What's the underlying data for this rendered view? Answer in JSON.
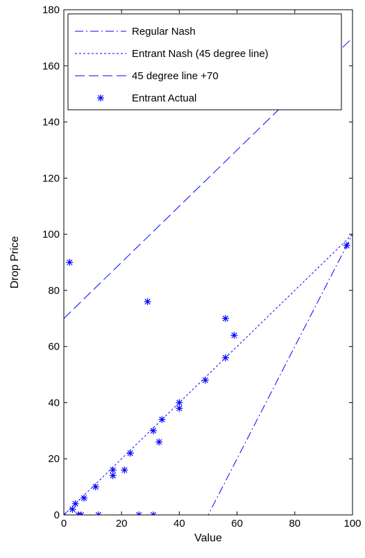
{
  "chart_data": {
    "type": "line",
    "title": "",
    "xlabel": "Value",
    "ylabel": "Drop Price",
    "xlim": [
      0,
      100
    ],
    "ylim": [
      0,
      180
    ],
    "x_ticks": [
      0,
      20,
      40,
      60,
      80,
      100
    ],
    "y_ticks": [
      0,
      20,
      40,
      60,
      80,
      100,
      120,
      140,
      160,
      180
    ],
    "legend_position": "top",
    "grid": false,
    "color": "#0000ff",
    "series": [
      {
        "name": "Regular Nash",
        "type": "line",
        "style": "dashdot",
        "x": [
          0,
          50,
          100
        ],
        "y": [
          0,
          0,
          100
        ]
      },
      {
        "name": "Entrant Nash (45 degree line)",
        "type": "line",
        "style": "dotted",
        "x": [
          0,
          100
        ],
        "y": [
          0,
          100
        ]
      },
      {
        "name": "45 degree line +70",
        "type": "line",
        "style": "dashed",
        "x": [
          0,
          100
        ],
        "y": [
          70,
          170
        ]
      },
      {
        "name": "Entrant Actual",
        "type": "scatter",
        "marker": "*",
        "points": [
          [
            2,
            90
          ],
          [
            29,
            76
          ],
          [
            56,
            70
          ],
          [
            59,
            64
          ],
          [
            56,
            56
          ],
          [
            49,
            48
          ],
          [
            40,
            40
          ],
          [
            40,
            38
          ],
          [
            34,
            34
          ],
          [
            31,
            30
          ],
          [
            33,
            26
          ],
          [
            23,
            22
          ],
          [
            17,
            16
          ],
          [
            21,
            16
          ],
          [
            17,
            14
          ],
          [
            11,
            10
          ],
          [
            7,
            6
          ],
          [
            4,
            4
          ],
          [
            3,
            2
          ],
          [
            0,
            0
          ],
          [
            5,
            0
          ],
          [
            6,
            0
          ],
          [
            12,
            0
          ],
          [
            26,
            0
          ],
          [
            31,
            0
          ],
          [
            98,
            96
          ]
        ]
      }
    ]
  }
}
